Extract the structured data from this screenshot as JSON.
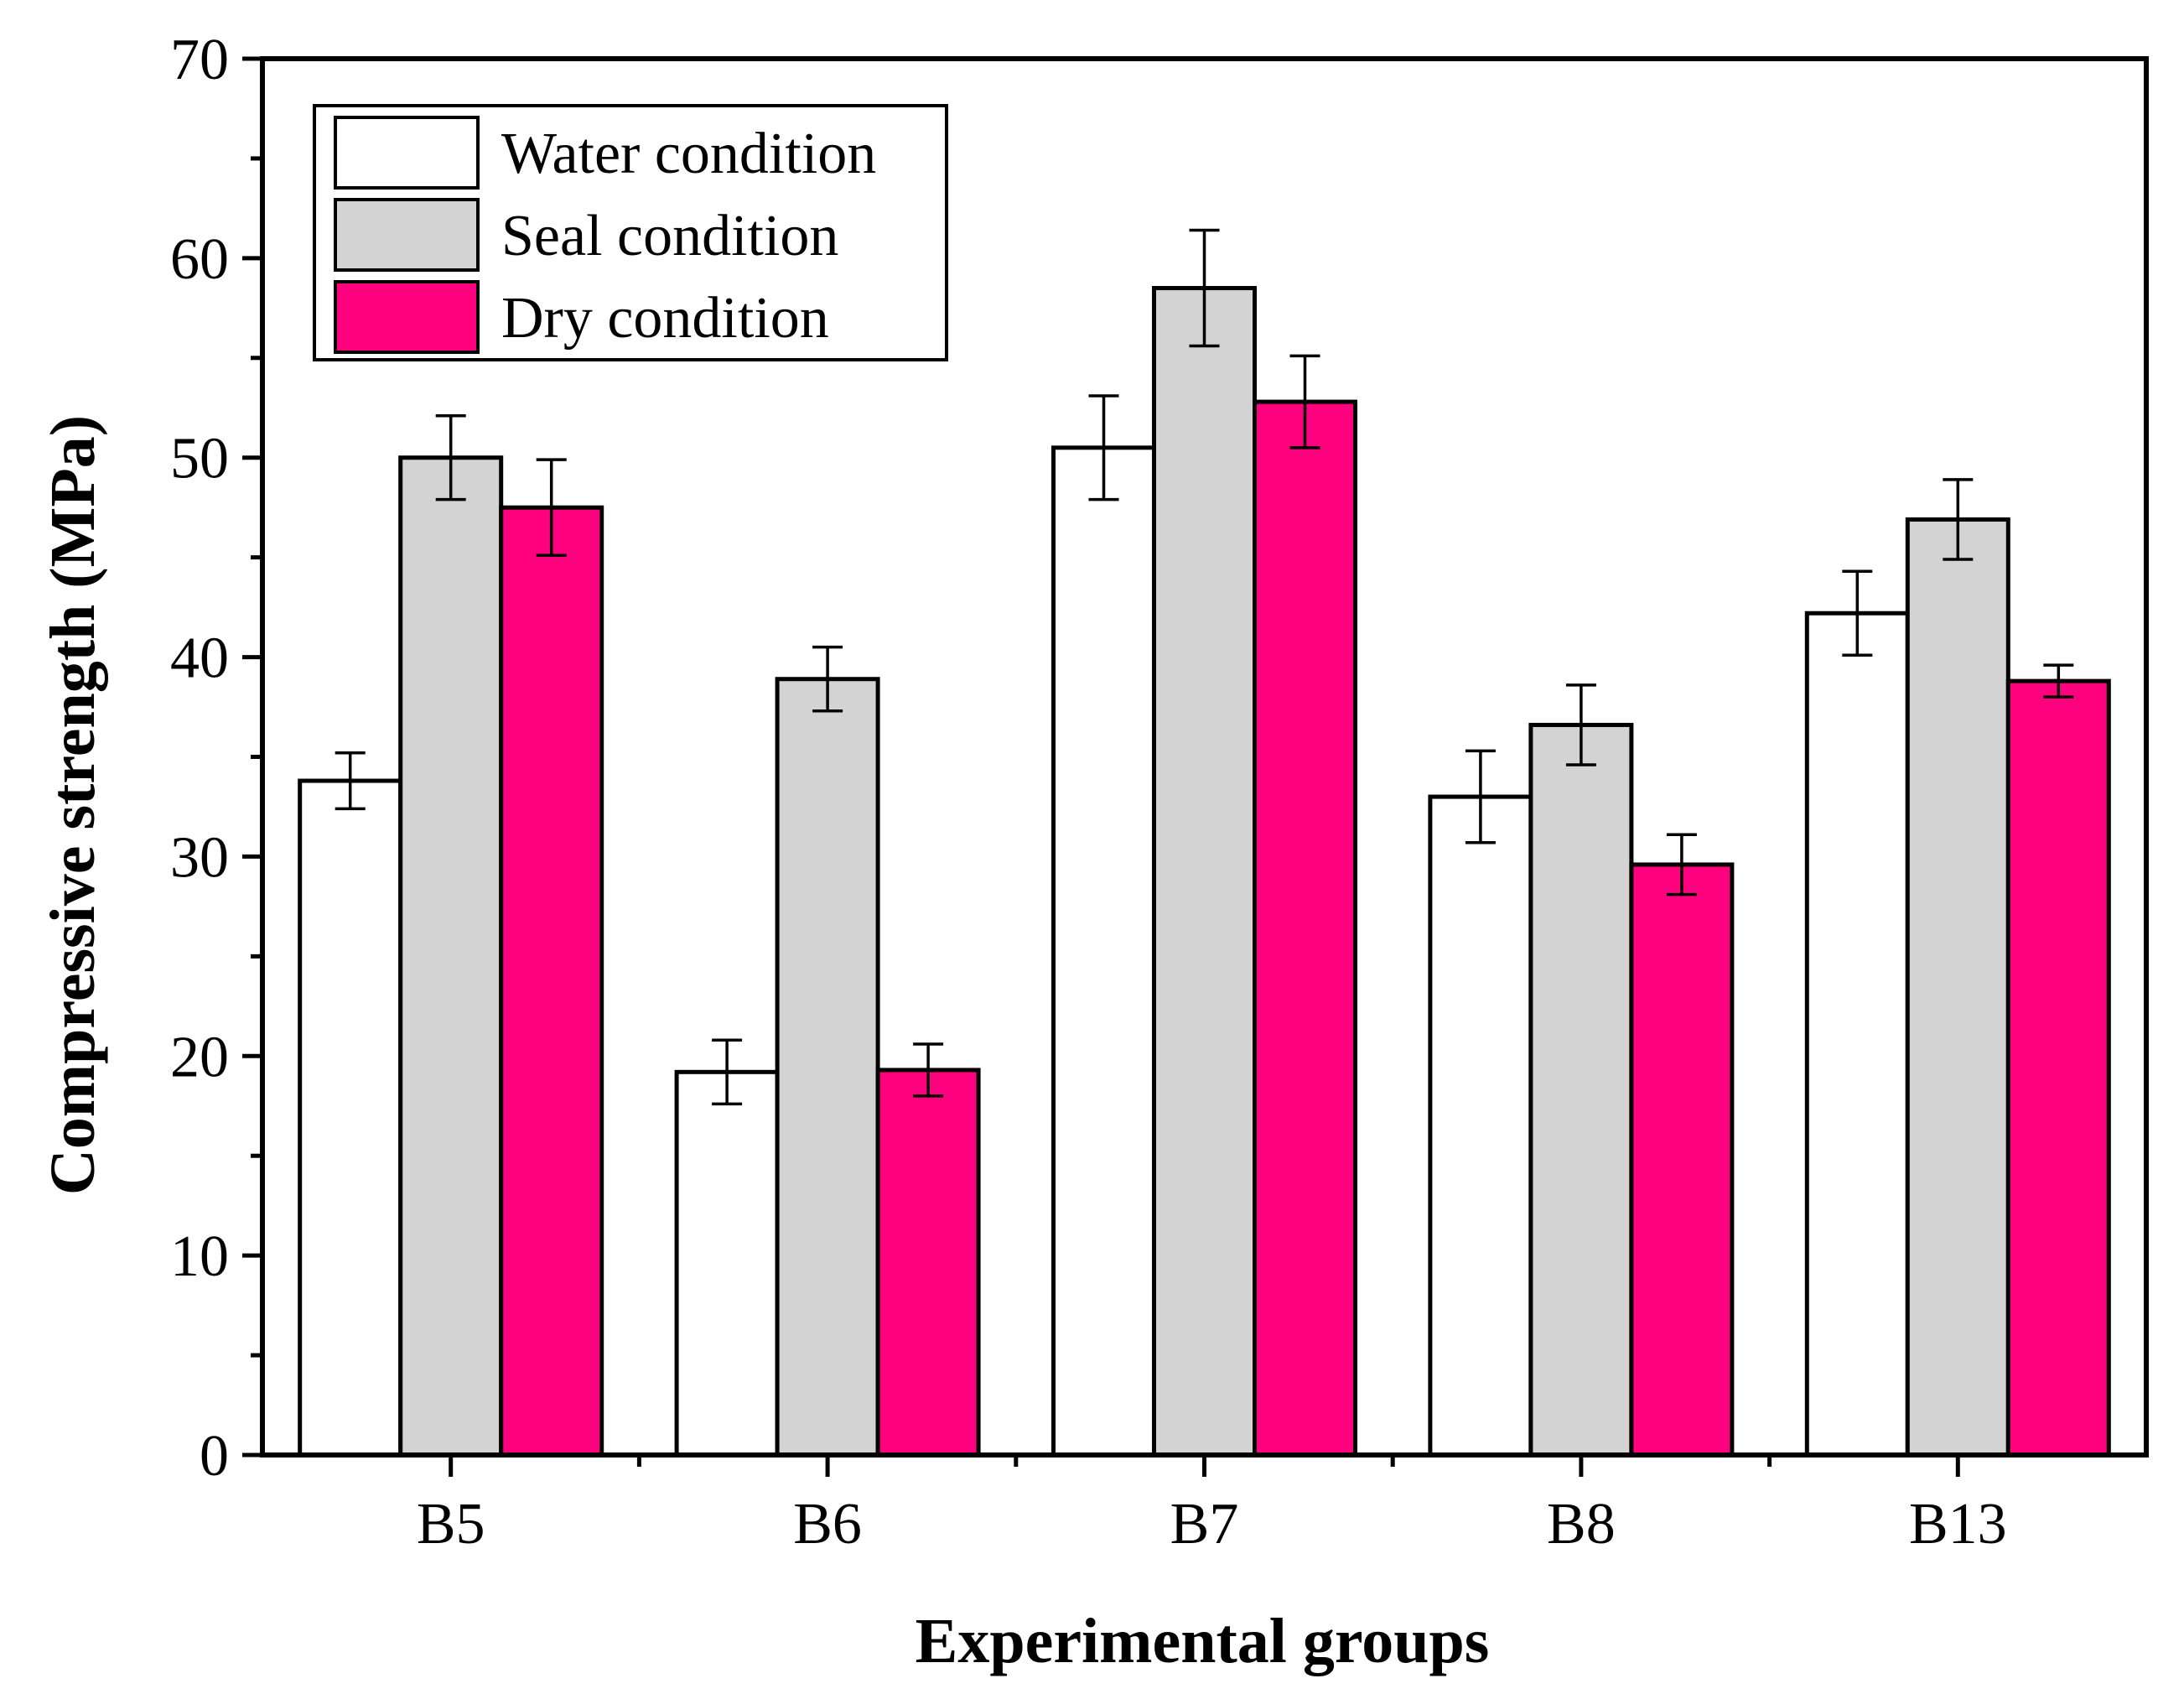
{
  "chart_data": {
    "type": "bar",
    "title": "",
    "xlabel": "Experimental groups",
    "ylabel": "Compressive strength (MPa)",
    "ylim": [
      0,
      70
    ],
    "yticks": [
      0,
      10,
      20,
      30,
      40,
      50,
      60,
      70
    ],
    "categories": [
      "B5",
      "B6",
      "B7",
      "B8",
      "B13"
    ],
    "legend_position": "top-left",
    "series": [
      {
        "name": "Water condition",
        "color": "#ffffff",
        "values": [
          33.8,
          19.2,
          50.5,
          33.0,
          42.2
        ],
        "errors": [
          1.4,
          1.6,
          2.6,
          2.3,
          2.1
        ]
      },
      {
        "name": "Seal condition",
        "color": "#d3d3d3",
        "values": [
          50.0,
          38.9,
          58.5,
          36.6,
          46.9
        ],
        "errors": [
          2.1,
          1.6,
          2.9,
          2.0,
          2.0
        ]
      },
      {
        "name": "Dry condition",
        "color": "#ff007f",
        "values": [
          47.5,
          19.3,
          52.8,
          29.6,
          38.8
        ],
        "errors": [
          2.4,
          1.3,
          2.3,
          1.5,
          0.8
        ]
      }
    ]
  }
}
